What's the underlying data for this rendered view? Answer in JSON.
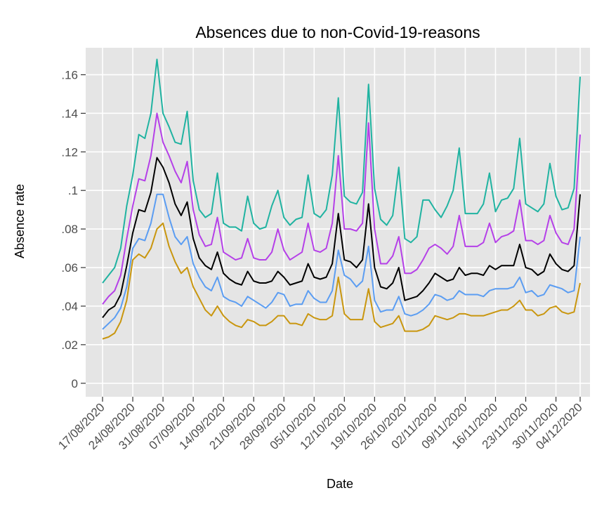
{
  "chart_data": {
    "type": "line",
    "title": "Absences due to non-Covid-19-reasons",
    "x_label": "Date",
    "y_label": "Absence rate",
    "categories": [
      "17/08/2020",
      null,
      null,
      null,
      null,
      "24/08/2020",
      null,
      null,
      null,
      null,
      "31/08/2020",
      null,
      null,
      null,
      null,
      "07/09/2020",
      null,
      null,
      null,
      null,
      "14/09/2020",
      null,
      null,
      null,
      null,
      "21/09/2020",
      null,
      null,
      null,
      null,
      "28/09/2020",
      null,
      null,
      null,
      null,
      "05/10/2020",
      null,
      null,
      null,
      null,
      "12/10/2020",
      null,
      null,
      null,
      null,
      "19/10/2020",
      null,
      null,
      null,
      null,
      "26/10/2020",
      null,
      null,
      null,
      null,
      "02/11/2020",
      null,
      null,
      null,
      null,
      "09/11/2020",
      null,
      null,
      null,
      null,
      "16/11/2020",
      null,
      null,
      null,
      null,
      "23/11/2020",
      null,
      null,
      null,
      null,
      "30/11/2020",
      null,
      null,
      null,
      "04/12/2020"
    ],
    "series": [
      {
        "color": "#20b3a1",
        "values": [
          0.052,
          0.056,
          0.06,
          0.07,
          0.092,
          0.108,
          0.129,
          0.127,
          0.14,
          0.168,
          0.14,
          0.133,
          0.125,
          0.124,
          0.141,
          0.105,
          0.09,
          0.086,
          0.088,
          0.109,
          0.083,
          0.081,
          0.081,
          0.079,
          0.097,
          0.083,
          0.08,
          0.081,
          0.092,
          0.1,
          0.086,
          0.082,
          0.085,
          0.086,
          0.108,
          0.088,
          0.086,
          0.09,
          0.108,
          0.148,
          0.097,
          0.094,
          0.093,
          0.099,
          0.155,
          0.101,
          0.085,
          0.082,
          0.087,
          0.112,
          0.075,
          0.073,
          0.076,
          0.095,
          0.095,
          0.09,
          0.086,
          0.092,
          0.1,
          0.122,
          0.088,
          0.088,
          0.088,
          0.093,
          0.109,
          0.089,
          0.095,
          0.096,
          0.101,
          0.127,
          0.093,
          0.091,
          0.089,
          0.093,
          0.114,
          0.097,
          0.09,
          0.091,
          0.101,
          0.159
        ]
      },
      {
        "color": "#b540e8",
        "values": [
          0.041,
          0.045,
          0.048,
          0.056,
          0.075,
          0.092,
          0.106,
          0.105,
          0.118,
          0.14,
          0.125,
          0.118,
          0.11,
          0.104,
          0.115,
          0.09,
          0.077,
          0.071,
          0.072,
          0.086,
          0.068,
          0.066,
          0.064,
          0.065,
          0.075,
          0.065,
          0.064,
          0.064,
          0.068,
          0.08,
          0.069,
          0.064,
          0.066,
          0.068,
          0.083,
          0.069,
          0.068,
          0.07,
          0.083,
          0.118,
          0.08,
          0.08,
          0.079,
          0.083,
          0.135,
          0.08,
          0.062,
          0.062,
          0.066,
          0.076,
          0.057,
          0.057,
          0.059,
          0.064,
          0.07,
          0.072,
          0.07,
          0.067,
          0.071,
          0.087,
          0.071,
          0.071,
          0.071,
          0.073,
          0.083,
          0.073,
          0.076,
          0.077,
          0.079,
          0.095,
          0.074,
          0.074,
          0.072,
          0.074,
          0.087,
          0.078,
          0.073,
          0.072,
          0.08,
          0.129
        ]
      },
      {
        "color": "#000000",
        "values": [
          0.034,
          0.038,
          0.04,
          0.046,
          0.061,
          0.078,
          0.09,
          0.089,
          0.099,
          0.117,
          0.112,
          0.104,
          0.093,
          0.087,
          0.094,
          0.075,
          0.065,
          0.061,
          0.059,
          0.068,
          0.057,
          0.054,
          0.052,
          0.051,
          0.058,
          0.053,
          0.052,
          0.052,
          0.053,
          0.058,
          0.055,
          0.051,
          0.052,
          0.053,
          0.062,
          0.055,
          0.054,
          0.055,
          0.062,
          0.088,
          0.064,
          0.063,
          0.06,
          0.064,
          0.093,
          0.06,
          0.05,
          0.049,
          0.052,
          0.06,
          0.043,
          0.044,
          0.045,
          0.048,
          0.052,
          0.057,
          0.055,
          0.053,
          0.054,
          0.06,
          0.056,
          0.057,
          0.057,
          0.056,
          0.061,
          0.059,
          0.061,
          0.061,
          0.061,
          0.072,
          0.06,
          0.059,
          0.056,
          0.058,
          0.067,
          0.062,
          0.059,
          0.058,
          0.061,
          0.098
        ]
      },
      {
        "color": "#5b9df2",
        "values": [
          0.028,
          0.031,
          0.034,
          0.039,
          0.05,
          0.07,
          0.075,
          0.074,
          0.083,
          0.098,
          0.098,
          0.086,
          0.076,
          0.072,
          0.076,
          0.062,
          0.055,
          0.05,
          0.048,
          0.055,
          0.045,
          0.043,
          0.042,
          0.04,
          0.045,
          0.043,
          0.041,
          0.039,
          0.042,
          0.047,
          0.046,
          0.04,
          0.041,
          0.041,
          0.048,
          0.044,
          0.042,
          0.042,
          0.048,
          0.069,
          0.056,
          0.054,
          0.05,
          0.053,
          0.071,
          0.043,
          0.037,
          0.038,
          0.038,
          0.045,
          0.036,
          0.035,
          0.036,
          0.038,
          0.041,
          0.046,
          0.045,
          0.043,
          0.044,
          0.048,
          0.046,
          0.046,
          0.046,
          0.045,
          0.048,
          0.049,
          0.049,
          0.049,
          0.05,
          0.055,
          0.047,
          0.048,
          0.045,
          0.046,
          0.051,
          0.05,
          0.049,
          0.047,
          0.048,
          0.076
        ]
      },
      {
        "color": "#c9960e",
        "values": [
          0.023,
          0.024,
          0.026,
          0.032,
          0.043,
          0.064,
          0.067,
          0.065,
          0.07,
          0.08,
          0.083,
          0.071,
          0.063,
          0.057,
          0.06,
          0.05,
          0.044,
          0.038,
          0.035,
          0.04,
          0.035,
          0.032,
          0.03,
          0.029,
          0.033,
          0.032,
          0.03,
          0.03,
          0.032,
          0.035,
          0.035,
          0.031,
          0.031,
          0.03,
          0.036,
          0.034,
          0.033,
          0.033,
          0.035,
          0.055,
          0.036,
          0.033,
          0.033,
          0.033,
          0.049,
          0.032,
          0.029,
          0.03,
          0.031,
          0.035,
          0.027,
          0.027,
          0.027,
          0.028,
          0.03,
          0.035,
          0.034,
          0.033,
          0.034,
          0.036,
          0.036,
          0.035,
          0.035,
          0.035,
          0.036,
          0.037,
          0.038,
          0.038,
          0.04,
          0.043,
          0.038,
          0.038,
          0.035,
          0.036,
          0.039,
          0.04,
          0.037,
          0.036,
          0.037,
          0.052
        ]
      }
    ],
    "ylim": [
      -0.007,
      0.174
    ],
    "yticks": [
      0,
      {
        "value": 0.02,
        "label": ".02"
      },
      {
        "value": 0.04,
        "label": ".04"
      },
      {
        "value": 0.06,
        "label": ".06"
      },
      {
        "value": 0.08,
        "label": ".08"
      },
      {
        "value": 0.1,
        "label": ".1"
      },
      {
        "value": 0.12,
        "label": ".12"
      },
      {
        "value": 0.14,
        "label": ".14"
      },
      {
        "value": 0.16,
        "label": ".16"
      }
    ],
    "grid": true,
    "panel_color": "#e5e5e5"
  }
}
